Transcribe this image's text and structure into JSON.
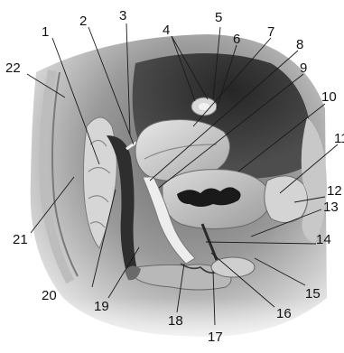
{
  "labels": [
    "1",
    "2",
    "3",
    "4",
    "5",
    "6",
    "7",
    "8",
    "9",
    "10",
    "11",
    "12",
    "13",
    "14",
    "15",
    "16",
    "17",
    "18",
    "19",
    "20",
    "21",
    "22"
  ],
  "colors": {
    "background": "#ffffff",
    "tissue_dark": "#3a3a3a",
    "tissue_mid": "#8c8c8c",
    "tissue_light": "#cfcfcf",
    "cavity": "#1c1c1c",
    "leader": "#1a1a1a"
  }
}
